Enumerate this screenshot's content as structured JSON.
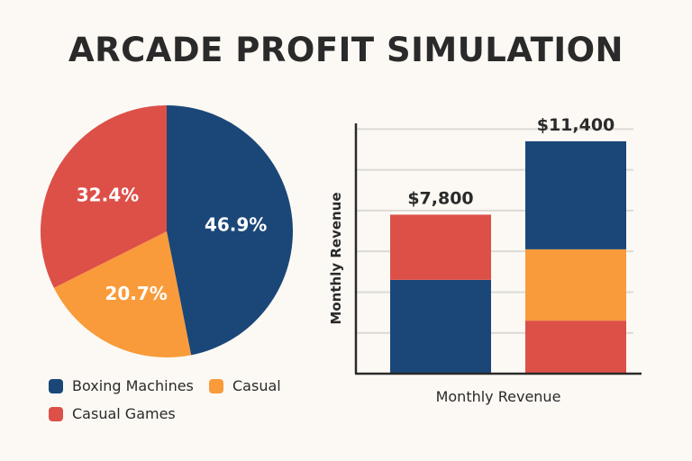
{
  "title": "ARCADE PROFIT SIMULATION",
  "colors": {
    "background": "#fcf9f4",
    "blue": "#1a4778",
    "orange": "#f99b3a",
    "red": "#dc5048",
    "text": "#2a2a2a"
  },
  "chart_data": [
    {
      "type": "pie",
      "slices": [
        {
          "name": "Boxing Machines",
          "value": 46.9,
          "label": "46.9%",
          "color": "#1a4778"
        },
        {
          "name": "Casual",
          "value": 20.7,
          "label": "20.7%",
          "color": "#f99b3a"
        },
        {
          "name": "Casual Games",
          "value": 32.4,
          "label": "32.4%",
          "color": "#dc5048"
        }
      ],
      "legend": {
        "position": "bottom",
        "entries": [
          "Boxing Machines",
          "Casual",
          "Casual Games"
        ]
      }
    },
    {
      "type": "bar",
      "stacked": true,
      "xlabel": "Monthly Revenue",
      "ylabel": "Monthly Revenue",
      "ylim": [
        0,
        12500
      ],
      "grid": true,
      "bars": [
        {
          "total_label": "$7,800",
          "segments": [
            {
              "value": 4600,
              "color": "#1a4778"
            },
            {
              "value": 3200,
              "color": "#dc5048"
            }
          ]
        },
        {
          "total_label": "$11,400",
          "segments": [
            {
              "value": 2600,
              "color": "#dc5048"
            },
            {
              "value": 3500,
              "color": "#f99b3a"
            },
            {
              "value": 5300,
              "color": "#1a4778"
            }
          ]
        }
      ]
    }
  ]
}
